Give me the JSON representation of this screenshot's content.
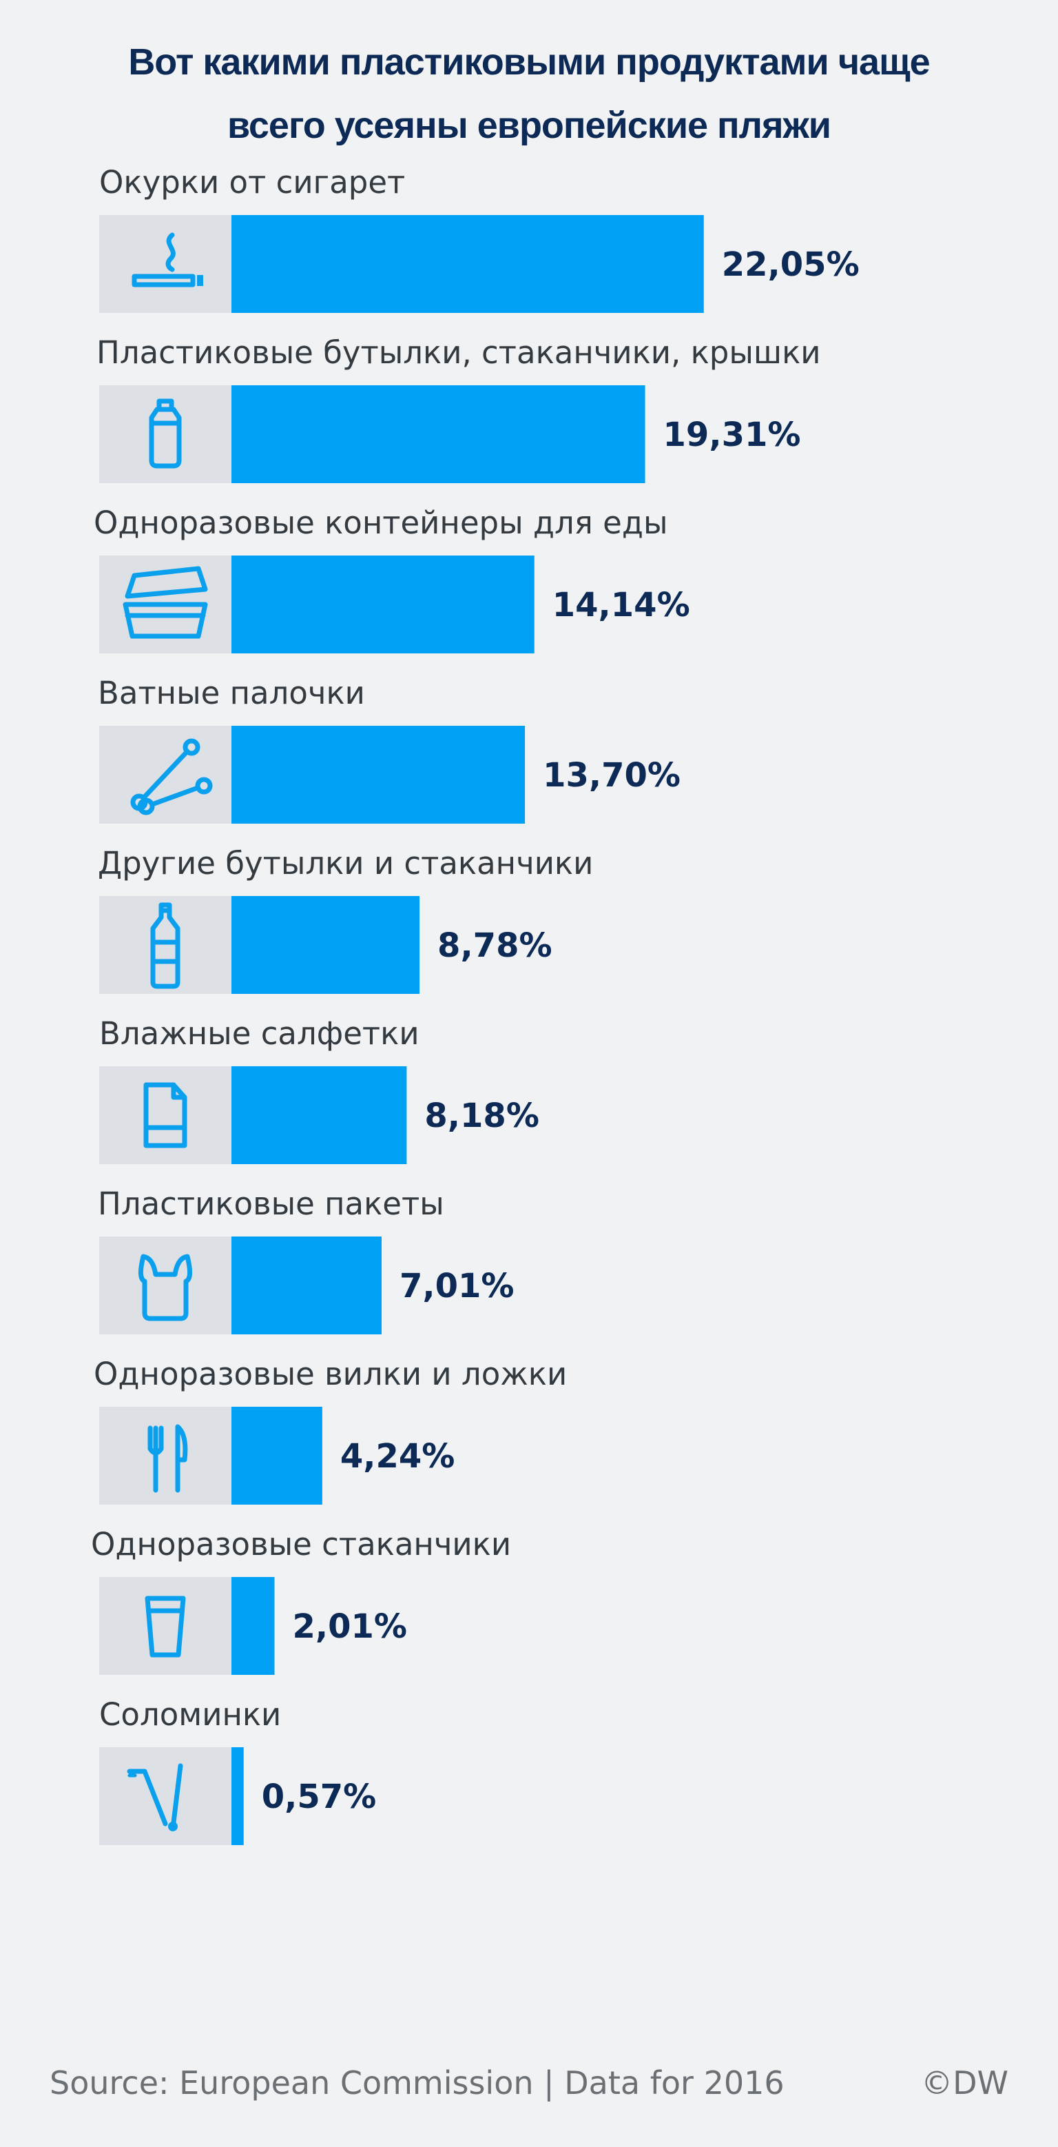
{
  "chart_data": {
    "type": "bar",
    "title_lines": [
      "Вот какими пластиковыми продуктами чаще",
      "всего усеяны европейские пляжи"
    ],
    "categories": [
      "Окурки от сигарет",
      "Пластиковые бутылки, стаканчики, крышки",
      "Одноразовые контейнеры для еды",
      "Ватные палочки",
      "Другие бутылки и стаканчики",
      "Влажные салфетки",
      "Пластиковые пакеты",
      "Одноразовые вилки и ложки",
      "Одноразовые стаканчики",
      "Соломинки"
    ],
    "values": [
      22.05,
      19.31,
      14.14,
      13.7,
      8.78,
      8.18,
      7.01,
      4.24,
      2.01,
      0.57
    ],
    "value_labels": [
      "22,05%",
      "19,31%",
      "14,14%",
      "13,70%",
      "8,78%",
      "8,18%",
      "7,01%",
      "4,24%",
      "2,01%",
      "0,57%"
    ],
    "icons": [
      "cigarette-icon",
      "bottle-icon",
      "food-container-icon",
      "cotton-swab-icon",
      "plastic-bottle-icon",
      "wet-wipes-icon",
      "plastic-bag-icon",
      "fork-knife-icon",
      "cup-icon",
      "straw-icon"
    ],
    "orientation": "horizontal",
    "colors": {
      "bar": "#00a0f5",
      "icon_box": "#dde1e5",
      "icon": "#0aa0ee",
      "title": "#0c2a55",
      "value": "#0c2a55"
    }
  },
  "footer": {
    "source": "Source: European Commission | Data for 2016",
    "copyright": "©DW"
  }
}
